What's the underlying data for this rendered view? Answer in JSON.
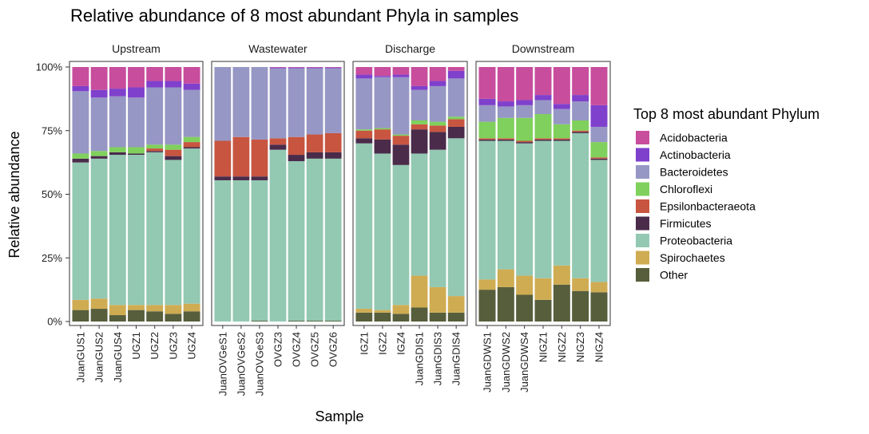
{
  "chart_data": {
    "type": "bar",
    "stacked": true,
    "title": "Relative abundance of 8 most abundant Phyla in samples",
    "xlabel": "Sample",
    "ylabel": "Relative abundance",
    "ylim": [
      0,
      100
    ],
    "yticks": [
      "0%",
      "25%",
      "50%",
      "75%",
      "100%"
    ],
    "grid": false,
    "legend": {
      "title": "Top 8 most abundant Phylum",
      "position": "right"
    },
    "stack_order": [
      "Other",
      "Spirochaetes",
      "Proteobacteria",
      "Firmicutes",
      "Epsilonbacteraeota",
      "Chloroflexi",
      "Bacteroidetes",
      "Actinobacteria",
      "Acidobacteria"
    ],
    "series": [
      {
        "name": "Acidobacteria",
        "color": "#C84D9D"
      },
      {
        "name": "Actinobacteria",
        "color": "#7F40CC"
      },
      {
        "name": "Bacteroidetes",
        "color": "#9697C4"
      },
      {
        "name": "Chloroflexi",
        "color": "#7FD05C"
      },
      {
        "name": "Epsilonbacteraeota",
        "color": "#C75540"
      },
      {
        "name": "Firmicutes",
        "color": "#4A2B4A"
      },
      {
        "name": "Proteobacteria",
        "color": "#93C8B2"
      },
      {
        "name": "Spirochaetes",
        "color": "#CFAC52"
      },
      {
        "name": "Other",
        "color": "#565E3C"
      }
    ],
    "facets": [
      {
        "name": "Upstream",
        "samples": [
          {
            "name": "JuanGUS1",
            "values": {
              "Other": 4.5,
              "Spirochaetes": 4,
              "Proteobacteria": 54,
              "Firmicutes": 1.5,
              "Epsilonbacteraeota": 0,
              "Chloroflexi": 2,
              "Bacteroidetes": 24.5,
              "Actinobacteria": 2,
              "Acidobacteria": 7.5
            }
          },
          {
            "name": "JuanGUS2",
            "values": {
              "Other": 5,
              "Spirochaetes": 4,
              "Proteobacteria": 55,
              "Firmicutes": 1,
              "Epsilonbacteraeota": 0,
              "Chloroflexi": 2,
              "Bacteroidetes": 21,
              "Actinobacteria": 3,
              "Acidobacteria": 9
            }
          },
          {
            "name": "JuanGUS4",
            "values": {
              "Other": 2.5,
              "Spirochaetes": 4,
              "Proteobacteria": 59,
              "Firmicutes": 1,
              "Epsilonbacteraeota": 0,
              "Chloroflexi": 2,
              "Bacteroidetes": 20,
              "Actinobacteria": 3,
              "Acidobacteria": 8.5
            }
          },
          {
            "name": "UGZ1",
            "values": {
              "Other": 4.5,
              "Spirochaetes": 2,
              "Proteobacteria": 59,
              "Firmicutes": 0.5,
              "Epsilonbacteraeota": 0,
              "Chloroflexi": 2.5,
              "Bacteroidetes": 19.5,
              "Actinobacteria": 4,
              "Acidobacteria": 8
            }
          },
          {
            "name": "UGZ2",
            "values": {
              "Other": 4,
              "Spirochaetes": 2.5,
              "Proteobacteria": 60,
              "Firmicutes": 0.5,
              "Epsilonbacteraeota": 1,
              "Chloroflexi": 1.5,
              "Bacteroidetes": 22.5,
              "Actinobacteria": 2.5,
              "Acidobacteria": 5.5
            }
          },
          {
            "name": "UGZ3",
            "values": {
              "Other": 3,
              "Spirochaetes": 3.5,
              "Proteobacteria": 57,
              "Firmicutes": 1.5,
              "Epsilonbacteraeota": 2.5,
              "Chloroflexi": 2,
              "Bacteroidetes": 22.5,
              "Actinobacteria": 2.5,
              "Acidobacteria": 5.5
            }
          },
          {
            "name": "UGZ4",
            "values": {
              "Other": 4,
              "Spirochaetes": 3,
              "Proteobacteria": 61,
              "Firmicutes": 0.5,
              "Epsilonbacteraeota": 2,
              "Chloroflexi": 2,
              "Bacteroidetes": 18.5,
              "Actinobacteria": 2.5,
              "Acidobacteria": 6.5
            }
          }
        ]
      },
      {
        "name": "Wastewater",
        "samples": [
          {
            "name": "JuanOVGeS1",
            "values": {
              "Other": 0,
              "Spirochaetes": 0,
              "Proteobacteria": 55.5,
              "Firmicutes": 1.5,
              "Epsilonbacteraeota": 14,
              "Chloroflexi": 0,
              "Bacteroidetes": 29,
              "Actinobacteria": 0,
              "Acidobacteria": 0
            }
          },
          {
            "name": "JuanOVGeS2",
            "values": {
              "Other": 0,
              "Spirochaetes": 0,
              "Proteobacteria": 55.5,
              "Firmicutes": 1.5,
              "Epsilonbacteraeota": 15.5,
              "Chloroflexi": 0,
              "Bacteroidetes": 27.5,
              "Actinobacteria": 0,
              "Acidobacteria": 0
            }
          },
          {
            "name": "JuanOVGeS3",
            "values": {
              "Other": 0.3,
              "Spirochaetes": 0,
              "Proteobacteria": 55.2,
              "Firmicutes": 1.5,
              "Epsilonbacteraeota": 14.5,
              "Chloroflexi": 0,
              "Bacteroidetes": 28.5,
              "Actinobacteria": 0,
              "Acidobacteria": 0
            }
          },
          {
            "name": "OVGZ3",
            "values": {
              "Other": 0,
              "Spirochaetes": 0,
              "Proteobacteria": 67.5,
              "Firmicutes": 2,
              "Epsilonbacteraeota": 2.5,
              "Chloroflexi": 0,
              "Bacteroidetes": 27.5,
              "Actinobacteria": 0.3,
              "Acidobacteria": 0.2
            }
          },
          {
            "name": "OVGZ4",
            "values": {
              "Other": 0.3,
              "Spirochaetes": 0,
              "Proteobacteria": 62.7,
              "Firmicutes": 2.5,
              "Epsilonbacteraeota": 7,
              "Chloroflexi": 0,
              "Bacteroidetes": 27,
              "Actinobacteria": 0.3,
              "Acidobacteria": 0.2
            }
          },
          {
            "name": "OVGZ5",
            "values": {
              "Other": 0.3,
              "Spirochaetes": 0,
              "Proteobacteria": 63.7,
              "Firmicutes": 2.5,
              "Epsilonbacteraeota": 7,
              "Chloroflexi": 0,
              "Bacteroidetes": 26,
              "Actinobacteria": 0.3,
              "Acidobacteria": 0.2
            }
          },
          {
            "name": "OVGZ6",
            "values": {
              "Other": 0.3,
              "Spirochaetes": 0,
              "Proteobacteria": 63.7,
              "Firmicutes": 2.5,
              "Epsilonbacteraeota": 7.5,
              "Chloroflexi": 0,
              "Bacteroidetes": 25.5,
              "Actinobacteria": 0.3,
              "Acidobacteria": 0.2
            }
          }
        ]
      },
      {
        "name": "Discharge",
        "samples": [
          {
            "name": "IGZ1",
            "values": {
              "Other": 3.5,
              "Spirochaetes": 1.5,
              "Proteobacteria": 65,
              "Firmicutes": 2,
              "Epsilonbacteraeota": 3,
              "Chloroflexi": 0.5,
              "Bacteroidetes": 20,
              "Actinobacteria": 1.5,
              "Acidobacteria": 3
            }
          },
          {
            "name": "IGZ2",
            "values": {
              "Other": 3.5,
              "Spirochaetes": 1,
              "Proteobacteria": 61.5,
              "Firmicutes": 5.5,
              "Epsilonbacteraeota": 4,
              "Chloroflexi": 0.5,
              "Bacteroidetes": 20,
              "Actinobacteria": 0.5,
              "Acidobacteria": 3.5
            }
          },
          {
            "name": "IGZ4",
            "values": {
              "Other": 3,
              "Spirochaetes": 3.5,
              "Proteobacteria": 55,
              "Firmicutes": 8,
              "Epsilonbacteraeota": 3.5,
              "Chloroflexi": 0.5,
              "Bacteroidetes": 22.5,
              "Actinobacteria": 1,
              "Acidobacteria": 3
            }
          },
          {
            "name": "JuanGDIS1",
            "values": {
              "Other": 5.5,
              "Spirochaetes": 12.5,
              "Proteobacteria": 48,
              "Firmicutes": 9.5,
              "Epsilonbacteraeota": 2,
              "Chloroflexi": 1.5,
              "Bacteroidetes": 12,
              "Actinobacteria": 1.5,
              "Acidobacteria": 7.5
            }
          },
          {
            "name": "JuanGDIS3",
            "values": {
              "Other": 3.5,
              "Spirochaetes": 10,
              "Proteobacteria": 54,
              "Firmicutes": 7,
              "Epsilonbacteraeota": 2.5,
              "Chloroflexi": 1.5,
              "Bacteroidetes": 14,
              "Actinobacteria": 2,
              "Acidobacteria": 5.5
            }
          },
          {
            "name": "JuanGDIS4",
            "values": {
              "Other": 3.5,
              "Spirochaetes": 6.5,
              "Proteobacteria": 62,
              "Firmicutes": 4.5,
              "Epsilonbacteraeota": 3,
              "Chloroflexi": 1,
              "Bacteroidetes": 15,
              "Actinobacteria": 3,
              "Acidobacteria": 1.5
            }
          }
        ]
      },
      {
        "name": "Downstream",
        "samples": [
          {
            "name": "JuanGDWS1",
            "values": {
              "Other": 12.5,
              "Spirochaetes": 4,
              "Proteobacteria": 54.5,
              "Firmicutes": 0.5,
              "Epsilonbacteraeota": 0.5,
              "Chloroflexi": 6.5,
              "Bacteroidetes": 6.5,
              "Actinobacteria": 2.5,
              "Acidobacteria": 12.5
            }
          },
          {
            "name": "JuanGDWS2",
            "values": {
              "Other": 13.5,
              "Spirochaetes": 7,
              "Proteobacteria": 50.5,
              "Firmicutes": 0.5,
              "Epsilonbacteraeota": 0.5,
              "Chloroflexi": 8,
              "Bacteroidetes": 4.5,
              "Actinobacteria": 2,
              "Acidobacteria": 13.5
            }
          },
          {
            "name": "JuanGDWS4",
            "values": {
              "Other": 10.5,
              "Spirochaetes": 7.5,
              "Proteobacteria": 52,
              "Firmicutes": 0.5,
              "Epsilonbacteraeota": 0.5,
              "Chloroflexi": 9,
              "Bacteroidetes": 5,
              "Actinobacteria": 2,
              "Acidobacteria": 13
            }
          },
          {
            "name": "NIGZ1",
            "values": {
              "Other": 8.5,
              "Spirochaetes": 8.5,
              "Proteobacteria": 54,
              "Firmicutes": 0.5,
              "Epsilonbacteraeota": 0.5,
              "Chloroflexi": 9.5,
              "Bacteroidetes": 5.5,
              "Actinobacteria": 2,
              "Acidobacteria": 11
            }
          },
          {
            "name": "NIGZ2",
            "values": {
              "Other": 14.5,
              "Spirochaetes": 7.5,
              "Proteobacteria": 49,
              "Firmicutes": 0.5,
              "Epsilonbacteraeota": 0.5,
              "Chloroflexi": 5.5,
              "Bacteroidetes": 6,
              "Actinobacteria": 2,
              "Acidobacteria": 14.5
            }
          },
          {
            "name": "NIGZ3",
            "values": {
              "Other": 12,
              "Spirochaetes": 5,
              "Proteobacteria": 57,
              "Firmicutes": 0.5,
              "Epsilonbacteraeota": 0.5,
              "Chloroflexi": 4,
              "Bacteroidetes": 7.5,
              "Actinobacteria": 2.5,
              "Acidobacteria": 11
            }
          },
          {
            "name": "NIGZ4",
            "values": {
              "Other": 11.5,
              "Spirochaetes": 4,
              "Proteobacteria": 48,
              "Firmicutes": 0.5,
              "Epsilonbacteraeota": 0.5,
              "Chloroflexi": 6,
              "Bacteroidetes": 6,
              "Actinobacteria": 8.5,
              "Acidobacteria": 15
            }
          }
        ]
      }
    ]
  }
}
